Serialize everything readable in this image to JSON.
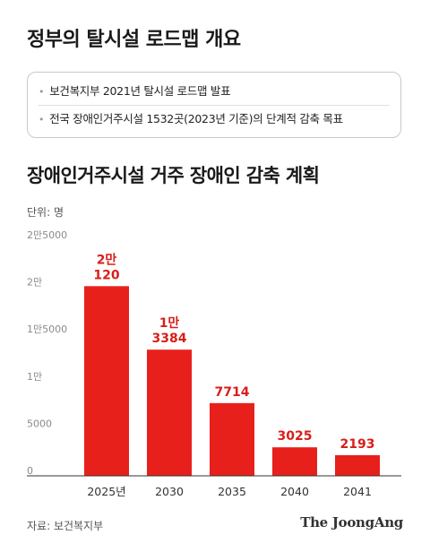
{
  "header": {
    "title": "정부의 탈시설 로드맵 개요"
  },
  "info": {
    "items": [
      "보건복지부 2021년 탈시설 로드맵 발표",
      "전국 장애인거주시설 1532곳(2023년 기준)의 단계적 감축 목표"
    ]
  },
  "chart_title": "장애인거주시설 거주 장애인 감축 계획",
  "unit_label": "단위: 명",
  "source": "자료: 보건복지부",
  "logo": "The JoongAng",
  "colors": {
    "bar": "#e8201c",
    "label": "#d81e1a",
    "tick": "#8a8a8a",
    "axis": "#333333"
  },
  "chart_data": {
    "type": "bar",
    "categories": [
      "2025년",
      "2030",
      "2035",
      "2040",
      "2041"
    ],
    "values": [
      20120,
      13384,
      7714,
      3025,
      2193
    ],
    "data_labels": [
      [
        "2만",
        "120"
      ],
      [
        "1만",
        "3384"
      ],
      [
        "7714"
      ],
      [
        "3025"
      ],
      [
        "2193"
      ]
    ],
    "ylim": [
      0,
      25000
    ],
    "yticks": [
      0,
      5000,
      10000,
      15000,
      20000,
      25000
    ],
    "ytick_labels": [
      "0",
      "5000",
      "1만",
      "1만5000",
      "2만",
      "2만5000"
    ],
    "grid": false,
    "title": "장애인거주시설 거주 장애인 감축 계획",
    "xlabel": "",
    "ylabel": "단위: 명"
  }
}
